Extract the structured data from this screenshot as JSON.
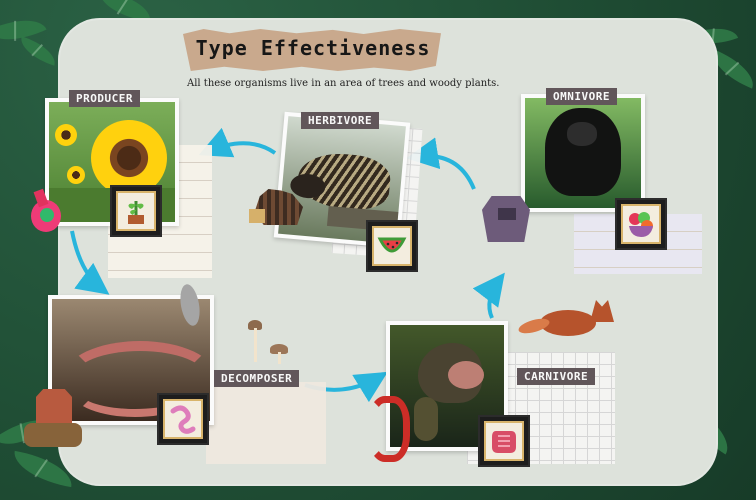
{
  "title": "Type Effectiveness",
  "subtitle": "All these organisms live in an area of trees and woody plants.",
  "roles": {
    "producer": "PRODUCER",
    "herbivore": "HERBIVORE",
    "omnivore": "OMNIVORE",
    "decomposer": "DECOMPOSER",
    "carnivore": "CARNIVORE"
  },
  "colors": {
    "background": "#1f4d34",
    "board": "#dde2db",
    "label": "#61565a",
    "arrow": "#28b5dc"
  },
  "icons": {
    "producer": "potted-plant-icon",
    "herbivore": "watermelon-icon",
    "omnivore": "fruit-bowl-icon",
    "decomposer": "worm-icon",
    "carnivore": "meat-icon"
  }
}
